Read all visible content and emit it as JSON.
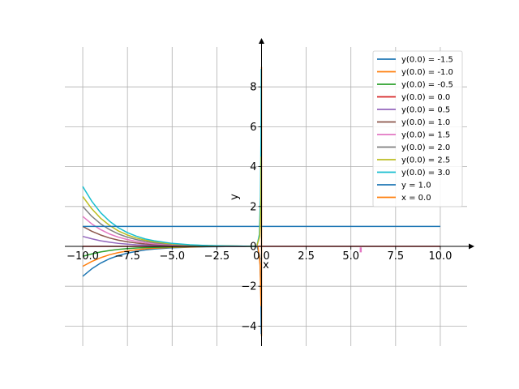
{
  "chart_data": {
    "type": "line",
    "xlabel": "x",
    "ylabel": "y",
    "xlim": [
      -11.0,
      11.5
    ],
    "ylim": [
      -5.0,
      10.0
    ],
    "grid": true,
    "legend_position": "top-right",
    "x_ticks": [
      -10.0,
      -7.5,
      -5.0,
      -2.5,
      0.0,
      2.5,
      5.0,
      7.5,
      10.0
    ],
    "x_tick_labels": [
      "−10.0",
      "−7.5",
      "−5.0",
      "−2.5",
      "0.0",
      "2.5",
      "5.0",
      "7.5",
      "10.0"
    ],
    "y_ticks": [
      -4,
      -2,
      0,
      2,
      4,
      6,
      8
    ],
    "y_tick_labels": [
      "−4",
      "−2",
      "0",
      "2",
      "4",
      "6",
      "8"
    ],
    "series": [
      {
        "name": "y(0.0) = -1.5",
        "color": "#1f77b4",
        "x": [
          -10.0,
          -9.5,
          -9.0,
          -8.5,
          -8.0,
          -7.5,
          -7.0,
          -6.5,
          -6.0,
          -5.0,
          -4.0,
          -3.0,
          -2.0,
          -1.0,
          -0.3
        ],
        "y": [
          -1.5,
          -1.13,
          -0.84,
          -0.62,
          -0.46,
          -0.34,
          -0.25,
          -0.18,
          -0.13,
          -0.07,
          -0.04,
          -0.02,
          -0.01,
          -0.01,
          0.0
        ]
      },
      {
        "name": "y(0.0) = -1.0",
        "color": "#ff7f0e",
        "x": [
          -10.0,
          -9.5,
          -9.0,
          -8.5,
          -8.0,
          -7.5,
          -7.0,
          -6.5,
          -6.0,
          -5.0,
          -4.0,
          -3.0,
          -2.0,
          -1.0,
          -0.3
        ],
        "y": [
          -1.0,
          -0.76,
          -0.57,
          -0.42,
          -0.31,
          -0.23,
          -0.17,
          -0.12,
          -0.09,
          -0.05,
          -0.03,
          -0.01,
          -0.01,
          0.0,
          0.0
        ]
      },
      {
        "name": "y(0.0) = -0.5",
        "color": "#2ca02c",
        "x": [
          -10.0,
          -9.5,
          -9.0,
          -8.5,
          -8.0,
          -7.5,
          -7.0,
          -6.5,
          -6.0,
          -5.0,
          -4.0,
          -3.0,
          -2.0,
          -1.0,
          -0.3
        ],
        "y": [
          -0.5,
          -0.38,
          -0.28,
          -0.21,
          -0.15,
          -0.11,
          -0.08,
          -0.06,
          -0.05,
          -0.03,
          -0.01,
          -0.01,
          0.0,
          0.0,
          0.0
        ]
      },
      {
        "name": "y(0.0) = 0.0",
        "color": "#d62728",
        "x": [
          -10.0,
          10.0
        ],
        "y": [
          0.0,
          0.0
        ]
      },
      {
        "name": "y(0.0) = 0.5",
        "color": "#9467bd",
        "x": [
          -10.0,
          -9.5,
          -9.0,
          -8.5,
          -8.0,
          -7.5,
          -7.0,
          -6.5,
          -6.0,
          -5.0,
          -4.0,
          -3.0,
          -2.0,
          -1.0,
          -0.3
        ],
        "y": [
          0.5,
          0.38,
          0.28,
          0.21,
          0.15,
          0.11,
          0.08,
          0.06,
          0.05,
          0.03,
          0.01,
          0.01,
          0.0,
          0.0,
          0.0
        ]
      },
      {
        "name": "y(0.0) = 1.0",
        "color": "#8c564b",
        "x": [
          -10.0,
          -9.5,
          -9.0,
          -8.5,
          -8.0,
          -7.5,
          -7.0,
          -6.5,
          -6.0,
          -5.0,
          -4.0,
          -3.0,
          -2.0,
          -1.0,
          -0.3
        ],
        "y": [
          1.0,
          0.76,
          0.57,
          0.42,
          0.31,
          0.23,
          0.17,
          0.12,
          0.09,
          0.05,
          0.03,
          0.01,
          0.01,
          0.0,
          0.0
        ]
      },
      {
        "name": "y(0.0) = 1.5",
        "color": "#e377c2",
        "x": [
          -10.0,
          -9.5,
          -9.0,
          -8.5,
          -8.0,
          -7.5,
          -7.0,
          -6.5,
          -6.0,
          -5.0,
          -4.0,
          -3.0,
          -2.0,
          -1.0,
          -0.3
        ],
        "y": [
          1.5,
          1.13,
          0.84,
          0.62,
          0.46,
          0.34,
          0.25,
          0.18,
          0.13,
          0.07,
          0.04,
          0.02,
          0.01,
          0.01,
          0.0
        ]
      },
      {
        "name": "y(0.0) = 2.0",
        "color": "#7f7f7f",
        "x": [
          -10.0,
          -9.5,
          -9.0,
          -8.5,
          -8.0,
          -7.5,
          -7.0,
          -6.5,
          -6.0,
          -5.0,
          -4.0,
          -3.0,
          -2.0,
          -1.0,
          -0.3
        ],
        "y": [
          2.0,
          1.51,
          1.13,
          0.84,
          0.62,
          0.46,
          0.34,
          0.25,
          0.18,
          0.1,
          0.05,
          0.03,
          0.02,
          0.01,
          0.0
        ]
      },
      {
        "name": "y(0.0) = 2.5",
        "color": "#bcbd22",
        "x": [
          -10.0,
          -9.5,
          -9.0,
          -8.5,
          -8.0,
          -7.5,
          -7.0,
          -6.5,
          -6.0,
          -5.0,
          -4.0,
          -3.0,
          -2.0,
          -1.0,
          -0.3
        ],
        "y": [
          2.5,
          1.89,
          1.41,
          1.05,
          0.77,
          0.57,
          0.42,
          0.31,
          0.23,
          0.12,
          0.07,
          0.04,
          0.02,
          0.01,
          0.0
        ]
      },
      {
        "name": "y(0.0) = 3.0",
        "color": "#17becf",
        "x": [
          -10.0,
          -9.5,
          -9.0,
          -8.5,
          -8.0,
          -7.5,
          -7.0,
          -6.5,
          -6.0,
          -5.0,
          -4.0,
          -3.0,
          -2.0,
          -1.0,
          -0.3
        ],
        "y": [
          3.0,
          2.27,
          1.69,
          1.26,
          0.93,
          0.69,
          0.51,
          0.37,
          0.28,
          0.15,
          0.08,
          0.04,
          0.02,
          0.01,
          0.0
        ]
      },
      {
        "name": "y = 1.0",
        "color": "#1f77b4",
        "x": [
          -10.0,
          10.0
        ],
        "y": [
          1.0,
          1.0
        ]
      },
      {
        "name": "x = 0.0",
        "color": "#ff7f0e",
        "x": [
          0.0,
          0.0
        ],
        "y": [
          -4.5,
          9.0
        ]
      }
    ],
    "near_zero_spikes": [
      {
        "color": "#17becf",
        "x": [
          -0.25,
          -0.12,
          -0.06,
          -0.03,
          -0.015
        ],
        "y": [
          0.05,
          0.6,
          2.5,
          5.5,
          8.9
        ]
      },
      {
        "color": "#1f77b4",
        "x": [
          -0.25,
          -0.1,
          -0.04,
          -0.015
        ],
        "y": [
          0.0,
          -0.5,
          -2.0,
          -4.4
        ]
      },
      {
        "color": "#ff7f0e",
        "x": [
          -0.2,
          -0.08,
          -0.03
        ],
        "y": [
          0.0,
          -0.9,
          -3.0
        ]
      },
      {
        "color": "#bcbd22",
        "x": [
          -0.25,
          -0.1,
          -0.04,
          -0.02
        ],
        "y": [
          0.05,
          0.5,
          2.0,
          4.5
        ]
      }
    ],
    "pink_mark": {
      "color": "#e377c2",
      "x": [
        5.55,
        5.55
      ],
      "y": [
        -0.05,
        -0.3
      ]
    }
  }
}
